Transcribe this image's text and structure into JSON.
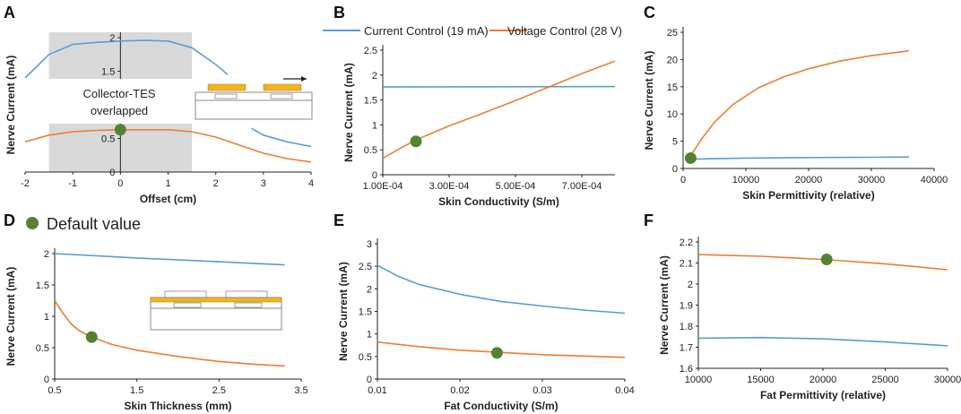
{
  "legend": {
    "current": "Current Control (19 mA)",
    "voltage": "Voltage Control (28 V)",
    "default": "Default value"
  },
  "colors": {
    "current": "#5b9bd5",
    "voltage": "#ed7d31",
    "marker": "#548235",
    "shade": "#d9d9d9",
    "electrode": "#f0b323"
  },
  "annotation": {
    "line1": "Collector-TES",
    "line2": "overlapped"
  },
  "chart_data": [
    {
      "panel": "A",
      "type": "line",
      "xlabel": "Offset (cm)",
      "ylabel": "Nerve Current (mA)",
      "xlim": [
        -2,
        4
      ],
      "ylim": [
        0,
        2
      ],
      "xticks": [
        -2,
        -1,
        0,
        1,
        2,
        3,
        4
      ],
      "xtick_labels": [
        "-2",
        "-1",
        "0",
        "1",
        "2",
        "3",
        "4"
      ],
      "yticks": [
        0,
        0.5,
        1.5,
        2
      ],
      "ytick_labels": [
        "0",
        "0.5",
        "1.5",
        "2"
      ],
      "shaded_x": [
        -1.5,
        1.5
      ],
      "series": [
        {
          "name": "current",
          "x": [
            -2,
            -1.5,
            -1,
            -0.5,
            0,
            0.5,
            1,
            1.5,
            2,
            2.25
          ],
          "y": [
            1.4,
            1.75,
            1.9,
            1.93,
            1.95,
            1.96,
            1.95,
            1.85,
            1.6,
            1.45
          ]
        },
        {
          "name": "current",
          "x": [
            2.75,
            3,
            3.5,
            4
          ],
          "y": [
            0.65,
            0.55,
            0.45,
            0.38
          ]
        },
        {
          "name": "voltage",
          "x": [
            -2,
            -1.5,
            -1,
            -0.5,
            0,
            0.5,
            1,
            1.5,
            2,
            2.5,
            3,
            3.5,
            4
          ],
          "y": [
            0.45,
            0.55,
            0.6,
            0.62,
            0.63,
            0.63,
            0.63,
            0.6,
            0.52,
            0.4,
            0.28,
            0.2,
            0.15
          ]
        }
      ],
      "default_point": {
        "x": 0,
        "y": 0.63
      }
    },
    {
      "panel": "B",
      "type": "line",
      "xlabel": "Skin Conductivity (S/m)",
      "ylabel": "Nerve Current (mA)",
      "xlim": [
        0.0001,
        0.0008
      ],
      "ylim": [
        0,
        2.5
      ],
      "xticks": [
        0.0001,
        0.0003,
        0.0005,
        0.0007
      ],
      "xtick_labels": [
        "1.00E-04",
        "3.00E-04",
        "5.00E-04",
        "7.00E-04"
      ],
      "yticks": [
        0,
        0.5,
        1,
        1.5,
        2,
        2.5
      ],
      "ytick_labels": [
        "0",
        "0.5",
        "1",
        "1.5",
        "2",
        "2.5"
      ],
      "series": [
        {
          "name": "current",
          "x": [
            0.0001,
            0.0008
          ],
          "y": [
            1.76,
            1.77
          ]
        },
        {
          "name": "voltage",
          "x": [
            0.0001,
            0.00015,
            0.0002,
            0.0003,
            0.0004,
            0.0005,
            0.0006,
            0.0007,
            0.0008
          ],
          "y": [
            0.33,
            0.52,
            0.7,
            0.98,
            1.23,
            1.49,
            1.76,
            2.03,
            2.28
          ]
        }
      ],
      "default_point": {
        "x": 0.0002,
        "y": 0.67
      }
    },
    {
      "panel": "C",
      "type": "line",
      "xlabel": "Skin Permittivity (relative)",
      "ylabel": "Nerve Current (mA)",
      "xlim": [
        0,
        40000
      ],
      "ylim": [
        0,
        25
      ],
      "xticks": [
        0,
        10000,
        20000,
        30000,
        40000
      ],
      "xtick_labels": [
        "0",
        "10000",
        "20000",
        "30000",
        "40000"
      ],
      "yticks": [
        0,
        5,
        10,
        15,
        20,
        25
      ],
      "ytick_labels": [
        "0",
        "5",
        "10",
        "15",
        "20",
        "25"
      ],
      "series": [
        {
          "name": "current",
          "x": [
            1000,
            5000,
            10000,
            20000,
            30000,
            36000
          ],
          "y": [
            1.7,
            1.8,
            1.9,
            2.0,
            2.05,
            2.1
          ]
        },
        {
          "name": "voltage",
          "x": [
            1000,
            3000,
            5000,
            8000,
            12000,
            16000,
            20000,
            25000,
            30000,
            36000
          ],
          "y": [
            2,
            5.5,
            8.5,
            11.8,
            14.8,
            16.8,
            18.3,
            19.7,
            20.7,
            21.6
          ]
        }
      ],
      "default_point": {
        "x": 1200,
        "y": 1.9
      }
    },
    {
      "panel": "D",
      "type": "line",
      "xlabel": "Skin Thickness (mm)",
      "ylabel": "Nerve Current (mA)",
      "xlim": [
        0.5,
        3.5
      ],
      "ylim": [
        0,
        2
      ],
      "xticks": [
        0.5,
        1.5,
        2.5,
        3.5
      ],
      "xtick_labels": [
        "0.5",
        "1.5",
        "2.5",
        "3.5"
      ],
      "yticks": [
        0,
        0.5,
        1,
        1.5,
        2
      ],
      "ytick_labels": [
        "0",
        "0.5",
        "1",
        "1.5",
        "2"
      ],
      "series": [
        {
          "name": "current",
          "x": [
            0.5,
            1.5,
            2.5,
            3.3
          ],
          "y": [
            2.0,
            1.93,
            1.87,
            1.82
          ]
        },
        {
          "name": "voltage",
          "x": [
            0.5,
            0.6,
            0.7,
            0.8,
            0.95,
            1.2,
            1.5,
            2,
            2.5,
            3,
            3.3
          ],
          "y": [
            1.25,
            1.05,
            0.88,
            0.77,
            0.67,
            0.55,
            0.46,
            0.36,
            0.28,
            0.23,
            0.21
          ]
        }
      ],
      "default_point": {
        "x": 0.95,
        "y": 0.67
      }
    },
    {
      "panel": "E",
      "type": "line",
      "xlabel": "Fat Conductivity (S/m)",
      "ylabel": "Nerve Current (mA)",
      "xlim": [
        0.01,
        0.04
      ],
      "ylim": [
        0,
        3
      ],
      "xticks": [
        0.01,
        0.02,
        0.03,
        0.04
      ],
      "xtick_labels": [
        "0.01",
        "0.02",
        "0.03",
        "0.04"
      ],
      "yticks": [
        0,
        0.5,
        1,
        1.5,
        2,
        2.5,
        3
      ],
      "ytick_labels": [
        "0",
        "0.5",
        "1",
        "1.5",
        "2",
        "2.5",
        "3"
      ],
      "series": [
        {
          "name": "current",
          "x": [
            0.01,
            0.0125,
            0.015,
            0.02,
            0.025,
            0.03,
            0.035,
            0.04
          ],
          "y": [
            2.52,
            2.28,
            2.1,
            1.88,
            1.72,
            1.62,
            1.53,
            1.46
          ]
        },
        {
          "name": "voltage",
          "x": [
            0.01,
            0.015,
            0.02,
            0.025,
            0.03,
            0.035,
            0.04
          ],
          "y": [
            0.82,
            0.72,
            0.64,
            0.59,
            0.54,
            0.51,
            0.48
          ]
        }
      ],
      "default_point": {
        "x": 0.0245,
        "y": 0.58
      }
    },
    {
      "panel": "F",
      "type": "line",
      "xlabel": "Fat Permittivity (relative)",
      "ylabel": "Nerve Current (mA)",
      "xlim": [
        10000,
        30000
      ],
      "ylim": [
        1.6,
        2.2
      ],
      "xticks": [
        10000,
        15000,
        20000,
        25000,
        30000
      ],
      "xtick_labels": [
        "10000",
        "15000",
        "20000",
        "25000",
        "30000"
      ],
      "yticks": [
        1.6,
        1.7,
        1.8,
        1.9,
        2.0,
        2.1,
        2.2
      ],
      "ytick_labels": [
        "1.6",
        "1.7",
        "1.8",
        "1.9",
        "2",
        "2.1",
        "2.2"
      ],
      "series": [
        {
          "name": "current",
          "x": [
            10000,
            15000,
            20000,
            25000,
            30000
          ],
          "y": [
            1.743,
            1.746,
            1.74,
            1.725,
            1.707
          ]
        },
        {
          "name": "voltage",
          "x": [
            10000,
            15000,
            20000,
            25000,
            30000
          ],
          "y": [
            2.14,
            2.132,
            2.117,
            2.096,
            2.068
          ]
        }
      ],
      "default_point": {
        "x": 20300,
        "y": 2.117
      }
    }
  ]
}
